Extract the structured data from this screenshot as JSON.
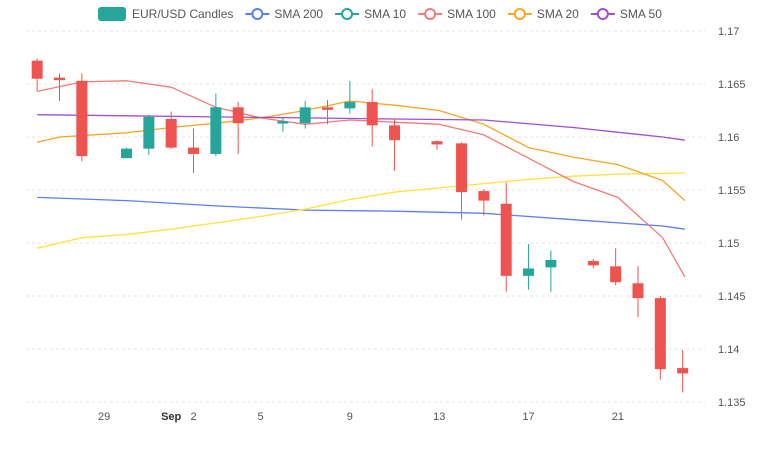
{
  "chart_data": {
    "type": "candlestick",
    "ylim": [
      1.135,
      1.17
    ],
    "y_ticks": [
      "1.17",
      "1.165",
      "1.16",
      "1.155",
      "1.15",
      "1.145",
      "1.14",
      "1.135"
    ],
    "x_ticks": [
      {
        "label": "29",
        "day": 29,
        "bold": false
      },
      {
        "label": "Sep",
        "day": 32,
        "bold": true
      },
      {
        "label": "2",
        "day": 33,
        "bold": false
      },
      {
        "label": "5",
        "day": 36,
        "bold": false
      },
      {
        "label": "9",
        "day": 40,
        "bold": false
      },
      {
        "label": "13",
        "day": 44,
        "bold": false
      },
      {
        "label": "17",
        "day": 48,
        "bold": false
      },
      {
        "label": "21",
        "day": 52,
        "bold": false
      }
    ],
    "xlim": [
      25.5,
      55.9
    ],
    "grid": true,
    "legend_position": "top",
    "legend": [
      {
        "label": "EUR/USD Candles",
        "kind": "box",
        "color": "#26a69a"
      },
      {
        "label": "SMA 200",
        "kind": "line",
        "color": "#5b7ff5"
      },
      {
        "label": "SMA 10",
        "kind": "line",
        "color": "#26a69a"
      },
      {
        "label": "SMA 100",
        "kind": "line",
        "color": "#f47a7a"
      },
      {
        "label": "SMA 20",
        "kind": "line",
        "color": "#f5a623"
      },
      {
        "label": "SMA 50",
        "kind": "line",
        "color": "#a04fcf"
      }
    ],
    "up_color": "#26a69a",
    "down_color": "#ef5350",
    "candles": [
      {
        "x": 26,
        "open": 1.1672,
        "close": 1.1655,
        "high": 1.1674,
        "low": 1.1643
      },
      {
        "x": 27,
        "open": 1.1656,
        "close": 1.1654,
        "high": 1.166,
        "low": 1.1634
      },
      {
        "x": 28,
        "open": 1.1653,
        "close": 1.1582,
        "high": 1.166,
        "low": 1.1577
      },
      {
        "x": 30,
        "open": 1.158,
        "close": 1.1589,
        "high": 1.159,
        "low": 1.158
      },
      {
        "x": 31,
        "open": 1.1589,
        "close": 1.1619,
        "high": 1.1621,
        "low": 1.1583
      },
      {
        "x": 32,
        "open": 1.1617,
        "close": 1.159,
        "high": 1.1624,
        "low": 1.1589
      },
      {
        "x": 33,
        "open": 1.159,
        "close": 1.1584,
        "high": 1.1608,
        "low": 1.1566
      },
      {
        "x": 34,
        "open": 1.1584,
        "close": 1.1628,
        "high": 1.1641,
        "low": 1.1582
      },
      {
        "x": 35,
        "open": 1.1628,
        "close": 1.1613,
        "high": 1.1633,
        "low": 1.1584
      },
      {
        "x": 37,
        "open": 1.1615,
        "close": 1.1615,
        "high": 1.1618,
        "low": 1.1605
      },
      {
        "x": 38,
        "open": 1.1613,
        "close": 1.1628,
        "high": 1.1634,
        "low": 1.1608
      },
      {
        "x": 39,
        "open": 1.1628,
        "close": 1.1627,
        "high": 1.1635,
        "low": 1.1612
      },
      {
        "x": 40,
        "open": 1.1627,
        "close": 1.1633,
        "high": 1.1653,
        "low": 1.1622
      },
      {
        "x": 41,
        "open": 1.1633,
        "close": 1.1611,
        "high": 1.1645,
        "low": 1.1591
      },
      {
        "x": 42,
        "open": 1.1611,
        "close": 1.1597,
        "high": 1.1617,
        "low": 1.1568
      },
      {
        "x": 43.9,
        "open": 1.1596,
        "close": 1.1593,
        "high": 1.1597,
        "low": 1.1588
      },
      {
        "x": 45,
        "open": 1.1594,
        "close": 1.1548,
        "high": 1.1595,
        "low": 1.1522
      },
      {
        "x": 46,
        "open": 1.1549,
        "close": 1.154,
        "high": 1.1551,
        "low": 1.1526
      },
      {
        "x": 47,
        "open": 1.1537,
        "close": 1.1469,
        "high": 1.1557,
        "low": 1.1454
      },
      {
        "x": 48,
        "open": 1.1469,
        "close": 1.1476,
        "high": 1.1499,
        "low": 1.1456
      },
      {
        "x": 49,
        "open": 1.1477,
        "close": 1.1484,
        "high": 1.1493,
        "low": 1.1454
      },
      {
        "x": 50.9,
        "open": 1.1483,
        "close": 1.1479,
        "high": 1.1485,
        "low": 1.1476
      },
      {
        "x": 51.9,
        "open": 1.1478,
        "close": 1.1463,
        "high": 1.1495,
        "low": 1.146
      },
      {
        "x": 52.9,
        "open": 1.1462,
        "close": 1.1448,
        "high": 1.1478,
        "low": 1.143
      },
      {
        "x": 53.9,
        "open": 1.1448,
        "close": 1.1381,
        "high": 1.145,
        "low": 1.1371
      },
      {
        "x": 54.9,
        "open": 1.1382,
        "close": 1.1377,
        "high": 1.1399,
        "low": 1.1359
      }
    ],
    "series": [
      {
        "name": "SMA 200",
        "color": "#5b7ff5",
        "points": [
          [
            26,
            1.1543
          ],
          [
            30,
            1.154
          ],
          [
            34,
            1.1535
          ],
          [
            38,
            1.1531
          ],
          [
            42,
            1.153
          ],
          [
            46,
            1.1528
          ],
          [
            50,
            1.1522
          ],
          [
            54,
            1.1516
          ],
          [
            55,
            1.1513
          ]
        ]
      },
      {
        "name": "SMA 10",
        "color": "#ffe23a",
        "points": [
          [
            26,
            1.1495
          ],
          [
            28,
            1.1505
          ],
          [
            30,
            1.1508
          ],
          [
            32,
            1.1513
          ],
          [
            34,
            1.1519
          ],
          [
            36,
            1.1525
          ],
          [
            38,
            1.1532
          ],
          [
            40,
            1.1541
          ],
          [
            42,
            1.1548
          ],
          [
            44,
            1.1552
          ],
          [
            46,
            1.1556
          ],
          [
            48,
            1.156
          ],
          [
            50,
            1.1563
          ],
          [
            52,
            1.1565
          ],
          [
            55,
            1.1566
          ]
        ]
      },
      {
        "name": "SMA 100",
        "color": "#f47a7a",
        "points": [
          [
            26,
            1.1643
          ],
          [
            28,
            1.1652
          ],
          [
            30,
            1.1653
          ],
          [
            32,
            1.1647
          ],
          [
            34,
            1.1628
          ],
          [
            36,
            1.1618
          ],
          [
            38,
            1.1612
          ],
          [
            40,
            1.1616
          ],
          [
            42,
            1.1614
          ],
          [
            44,
            1.1612
          ],
          [
            46,
            1.1602
          ],
          [
            48,
            1.158
          ],
          [
            50,
            1.1558
          ],
          [
            52,
            1.1543
          ],
          [
            54,
            1.1505
          ],
          [
            55,
            1.1468
          ]
        ]
      },
      {
        "name": "SMA 20",
        "color": "#f5a623",
        "points": [
          [
            26,
            1.1595
          ],
          [
            27,
            1.16
          ],
          [
            30,
            1.1604
          ],
          [
            32,
            1.1609
          ],
          [
            34,
            1.1613
          ],
          [
            36,
            1.1618
          ],
          [
            38,
            1.1625
          ],
          [
            40,
            1.1634
          ],
          [
            42,
            1.163
          ],
          [
            44,
            1.1625
          ],
          [
            46,
            1.1612
          ],
          [
            48,
            1.159
          ],
          [
            50,
            1.1581
          ],
          [
            52,
            1.1574
          ],
          [
            54,
            1.1559
          ],
          [
            55,
            1.154
          ]
        ]
      },
      {
        "name": "SMA 50",
        "color": "#a04fcf",
        "points": [
          [
            26,
            1.1621
          ],
          [
            30,
            1.162
          ],
          [
            34,
            1.1619
          ],
          [
            38,
            1.1618
          ],
          [
            42,
            1.1617
          ],
          [
            46,
            1.1616
          ],
          [
            50,
            1.1609
          ],
          [
            54,
            1.16
          ],
          [
            55,
            1.1597
          ]
        ]
      }
    ]
  }
}
